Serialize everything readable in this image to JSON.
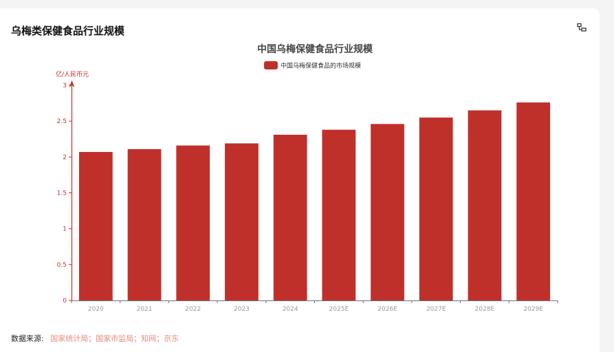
{
  "card": {
    "title": "乌梅类保健食品行业规模"
  },
  "icons": {
    "view": "data-view-icon"
  },
  "chart_data": {
    "type": "bar",
    "title": "中国乌梅保健食品行业规模",
    "legend": "中国乌梅保健食品的市场规模",
    "legend_position": "top-center",
    "ylabel": "亿/人民币元",
    "xlabel": "",
    "ylim": [
      0,
      3
    ],
    "yticks": [
      "0",
      "0.5",
      "1",
      "1.5",
      "2",
      "2.5",
      "3"
    ],
    "grid": false,
    "categories": [
      "2020",
      "2021",
      "2022",
      "2023",
      "2024",
      "2025E",
      "2026E",
      "2027E",
      "2028E",
      "2029E"
    ],
    "values": [
      2.07,
      2.11,
      2.16,
      2.19,
      2.31,
      2.38,
      2.46,
      2.55,
      2.65,
      2.76
    ],
    "colors": {
      "bar": "#c0302b",
      "y_axis": "#c0302b",
      "x_axis": "#6e7079",
      "tick_label": "#999999"
    }
  },
  "footer": {
    "source_label": "数据来源:",
    "source_values": "国家统计局；国家市监局；知网；京东"
  }
}
